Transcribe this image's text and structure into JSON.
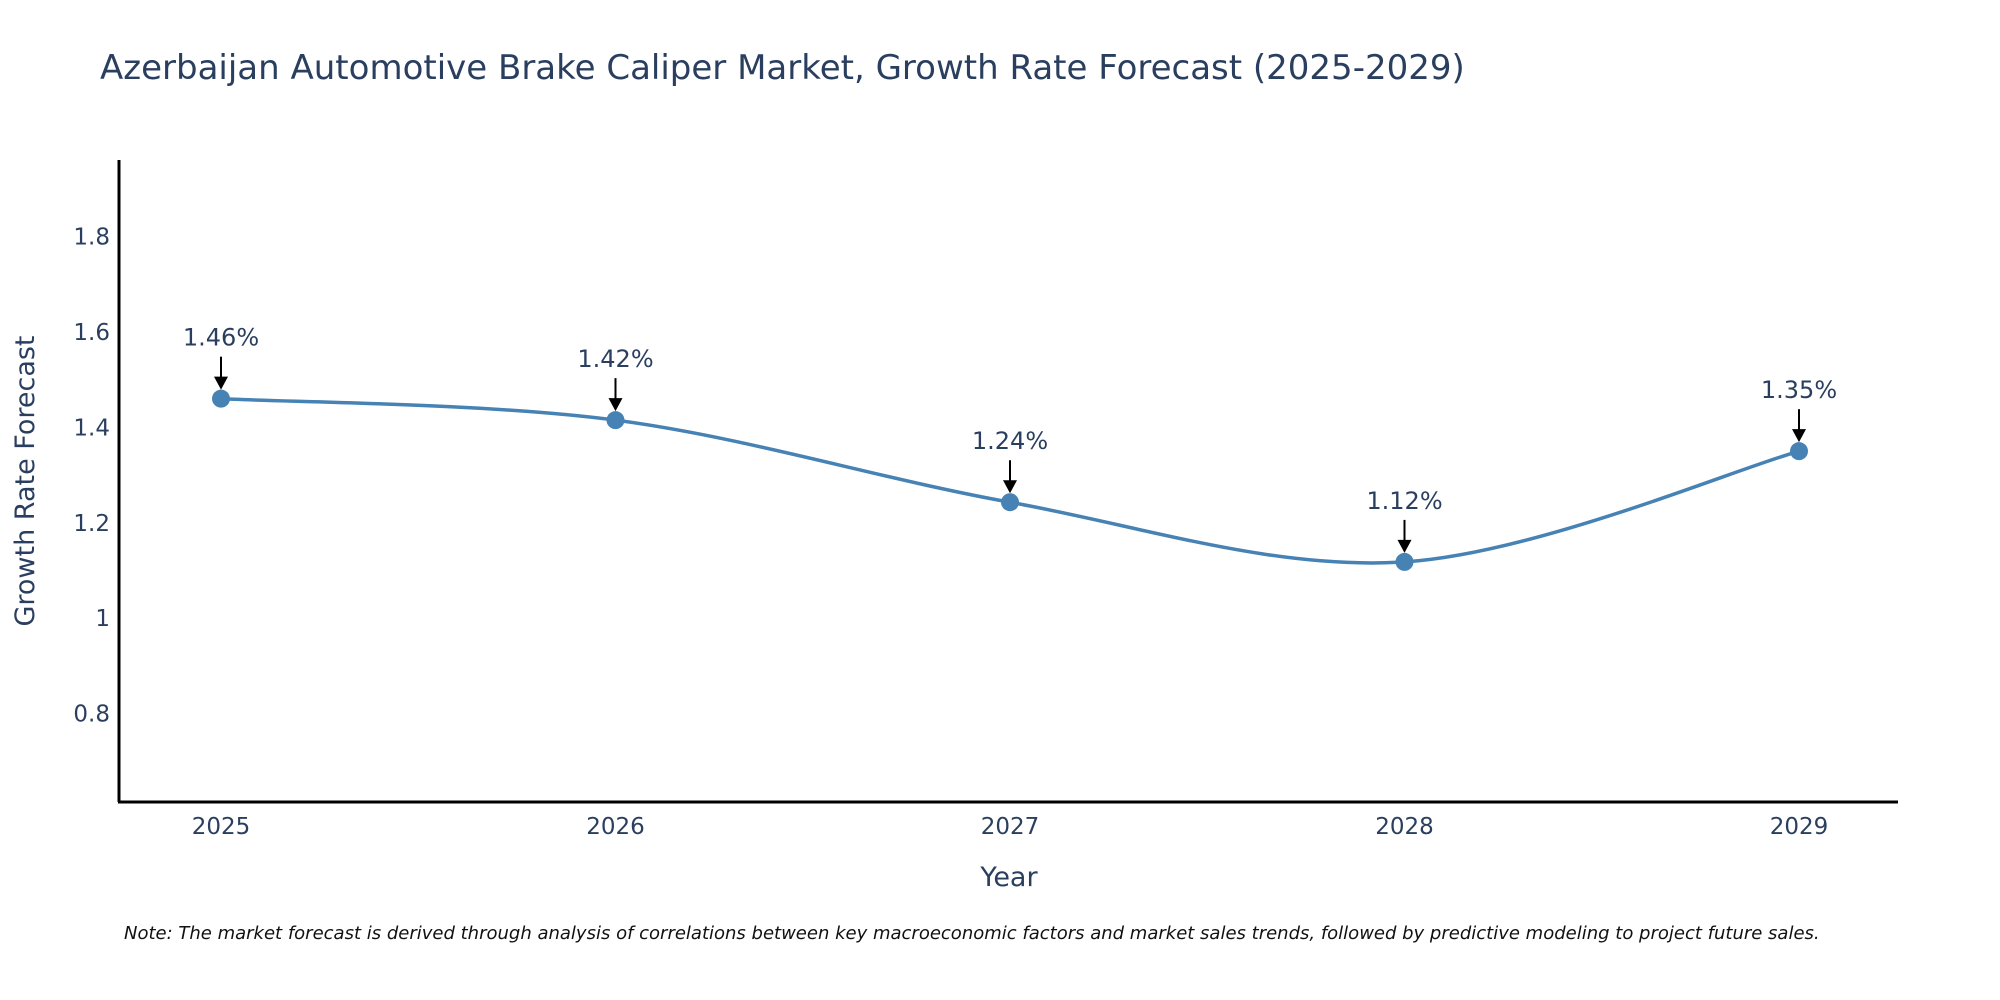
{
  "chart_data": {
    "type": "line",
    "title": "Azerbaijan Automotive Brake Caliper Market, Growth Rate Forecast (2025-2029)",
    "xlabel": "Year",
    "ylabel": "Growth Rate Forecast",
    "categories": [
      "2025",
      "2026",
      "2027",
      "2028",
      "2029"
    ],
    "series": [
      {
        "name": "Growth Rate Forecast",
        "values": [
          1.46,
          1.415,
          1.243,
          1.118,
          1.35
        ],
        "labels": [
          "1.46%",
          "1.42%",
          "1.24%",
          "1.12%",
          "1.35%"
        ],
        "color": "#4682b4"
      }
    ],
    "ylim": [
      0.615,
      1.96
    ],
    "yticks": [
      0.8,
      1,
      1.2,
      1.4,
      1.6,
      1.8
    ],
    "ytick_labels": [
      "0.8",
      "1",
      "1.2",
      "1.4",
      "1.6",
      "1.8"
    ],
    "grid": false,
    "line_shape": "spline",
    "annotation_arrows": true
  },
  "note": "Note: The market forecast is derived through analysis of correlations between key macroeconomic factors and market sales trends, followed by predictive modeling to project future sales.",
  "colors": {
    "line": "#4682b4",
    "axis": "#000000",
    "text": "#2a3f5f",
    "arrow": "#000000"
  }
}
